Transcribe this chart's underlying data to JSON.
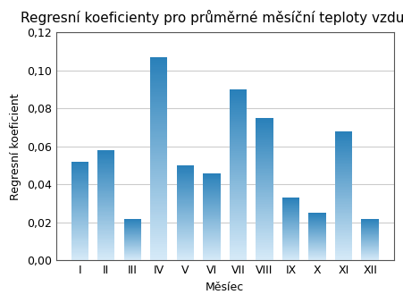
{
  "title": "Regresní koeficienty pro průměrné měsíční teploty vzduchu",
  "xlabel": "Měsíec",
  "ylabel": "Regresní koeficient",
  "categories": [
    "I",
    "II",
    "III",
    "IV",
    "V",
    "VI",
    "VII",
    "VIII",
    "IX",
    "X",
    "XI",
    "XII"
  ],
  "values": [
    0.052,
    0.058,
    0.022,
    0.107,
    0.05,
    0.046,
    0.09,
    0.075,
    0.033,
    0.025,
    0.068,
    0.022
  ],
  "ylim": [
    0,
    0.12
  ],
  "yticks": [
    0.0,
    0.02,
    0.04,
    0.06,
    0.08,
    0.1,
    0.12
  ],
  "bar_color_top": "#2980b9",
  "bar_color_bottom": "#d6eaf8",
  "grid_color": "#cccccc",
  "background_color": "#ffffff",
  "title_fontsize": 11,
  "label_fontsize": 9,
  "tick_fontsize": 9,
  "bar_width": 0.65
}
